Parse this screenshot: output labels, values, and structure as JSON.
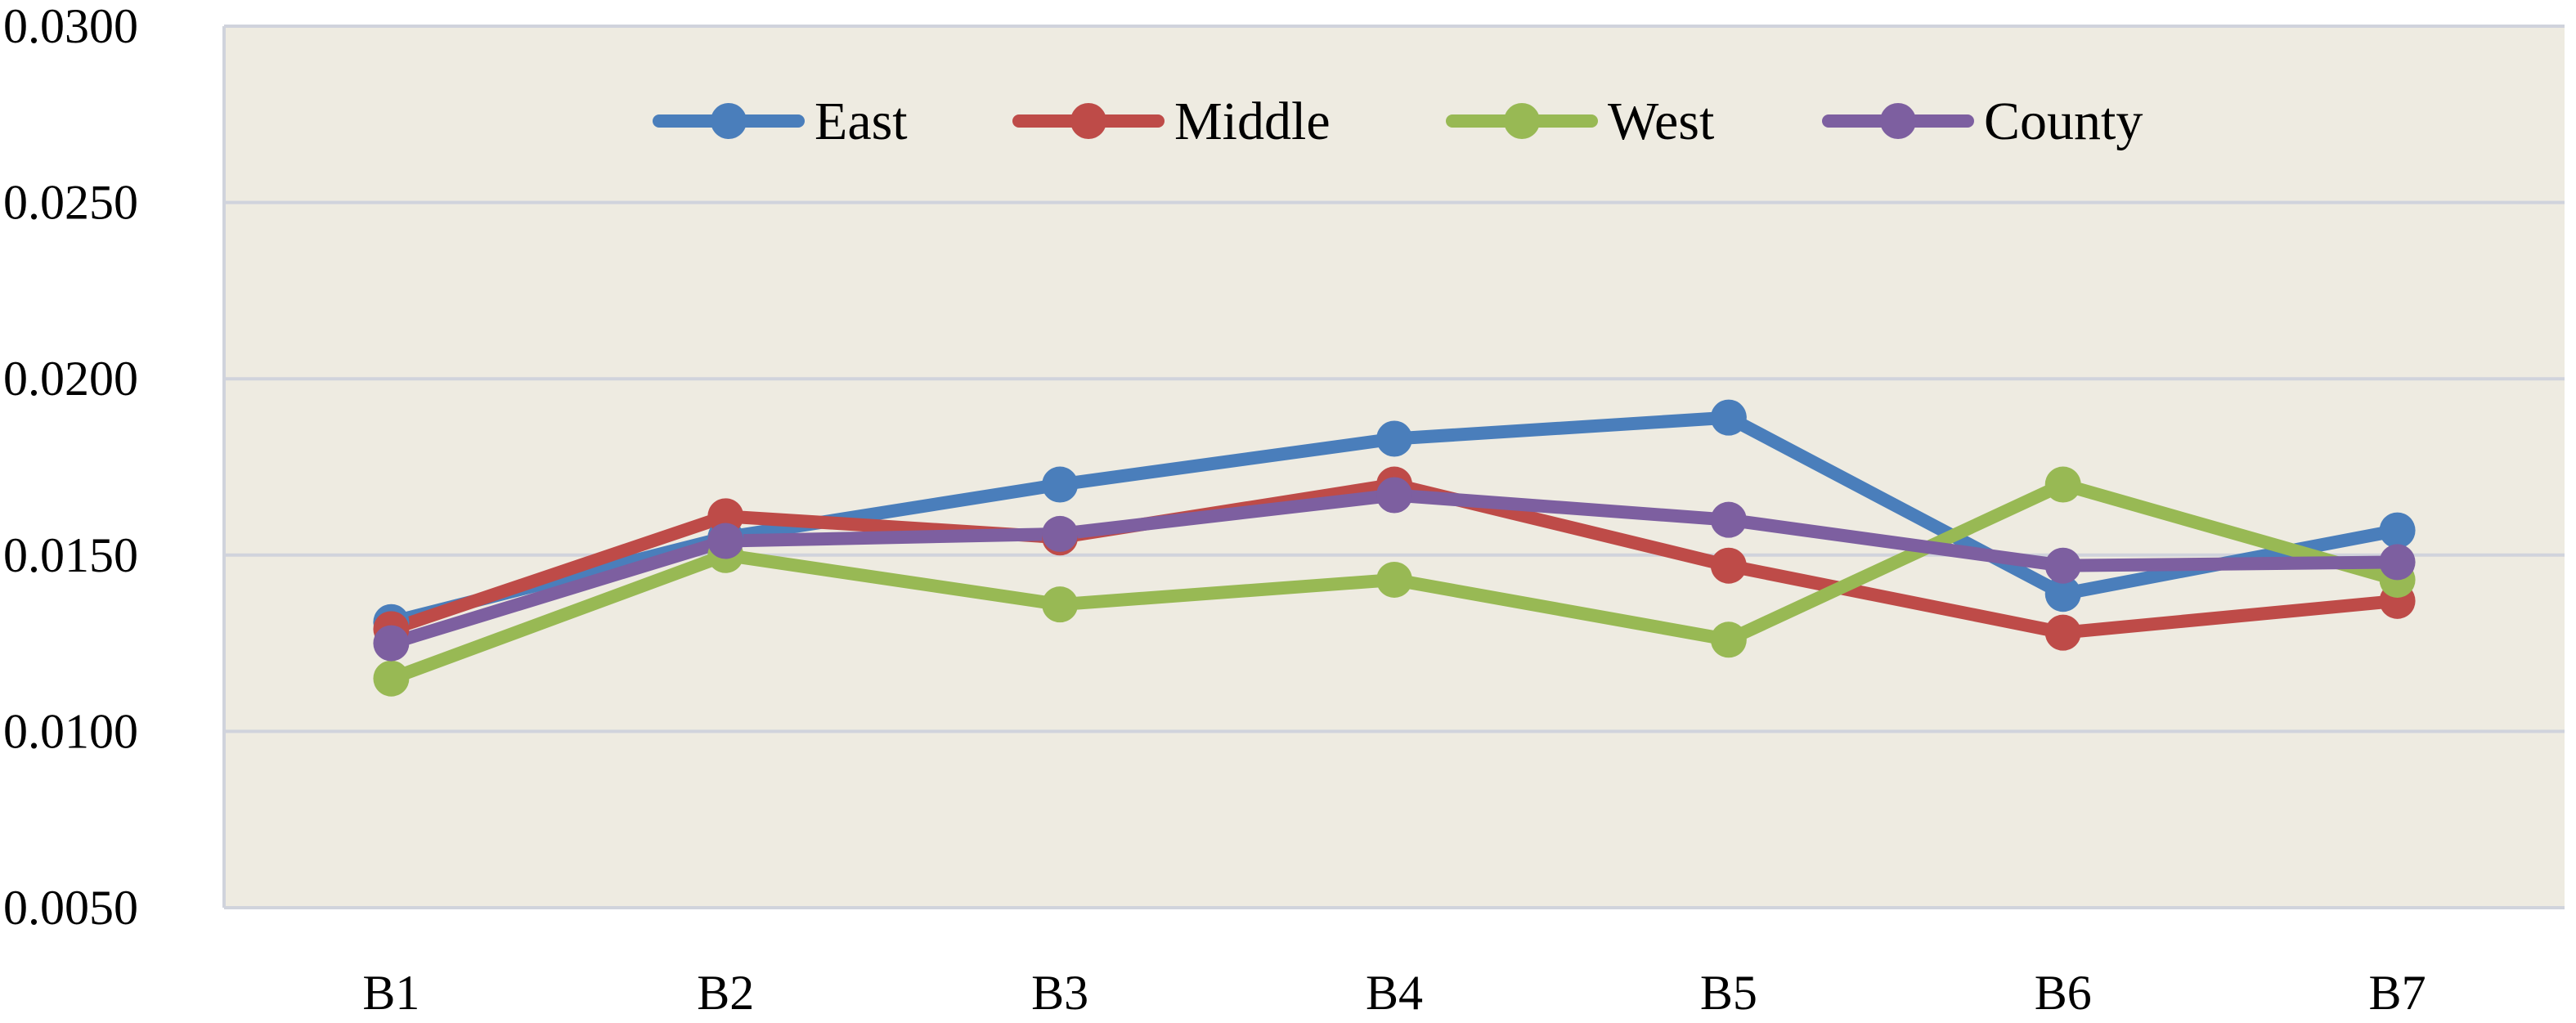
{
  "chart_data": {
    "type": "line",
    "categories": [
      "B1",
      "B2",
      "B3",
      "B4",
      "B5",
      "B6",
      "B7"
    ],
    "y_ticks": [
      "0.0050",
      "0.0100",
      "0.0150",
      "0.0200",
      "0.0250",
      "0.0300"
    ],
    "ylim": [
      0.005,
      0.03
    ],
    "grid": true,
    "legend_position": "top",
    "plot_background": "#eeebe1",
    "series": [
      {
        "name": "East",
        "color": "#4a7ebb",
        "values": [
          0.0131,
          0.0155,
          0.017,
          0.0183,
          0.0189,
          0.0139,
          0.0157
        ]
      },
      {
        "name": "Middle",
        "color": "#be4b48",
        "values": [
          0.0129,
          0.0161,
          0.0155,
          0.017,
          0.0147,
          0.0128,
          0.0137
        ]
      },
      {
        "name": "West",
        "color": "#98b954",
        "values": [
          0.0115,
          0.015,
          0.0136,
          0.0143,
          0.0126,
          0.017,
          0.0143
        ]
      },
      {
        "name": "County",
        "color": "#7d5fa0",
        "values": [
          0.0125,
          0.0154,
          0.0156,
          0.0167,
          0.016,
          0.0147,
          0.0148
        ]
      }
    ]
  }
}
